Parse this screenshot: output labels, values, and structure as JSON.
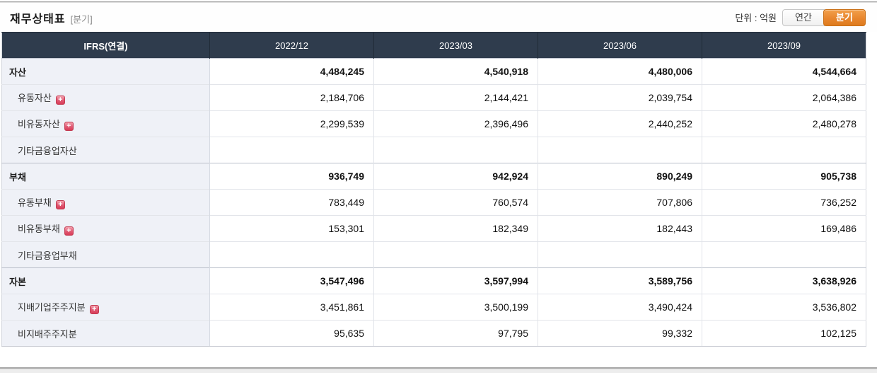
{
  "header": {
    "title": "재무상태표",
    "subtitle": "[분기]",
    "unit_label": "단위 : 억원",
    "annual_label": "연간",
    "quarter_label": "분기",
    "active_toggle": "분기"
  },
  "colors": {
    "table_header_bg": "#2f3c4d",
    "accent_orange": "#e8862e",
    "label_cell_bg": "#eff1f7",
    "expand_icon_red": "#d83c57"
  },
  "table": {
    "columns": [
      "IFRS(연결)",
      "2022/12",
      "2023/03",
      "2023/06",
      "2023/09"
    ],
    "rows": [
      {
        "label": "자산",
        "type": "section",
        "expandable": false,
        "values": [
          "4,484,245",
          "4,540,918",
          "4,480,006",
          "4,544,664"
        ]
      },
      {
        "label": "유동자산",
        "type": "sub",
        "expandable": true,
        "values": [
          "2,184,706",
          "2,144,421",
          "2,039,754",
          "2,064,386"
        ]
      },
      {
        "label": "비유동자산",
        "type": "sub",
        "expandable": true,
        "values": [
          "2,299,539",
          "2,396,496",
          "2,440,252",
          "2,480,278"
        ]
      },
      {
        "label": "기타금융업자산",
        "type": "sub",
        "expandable": false,
        "values": [
          "",
          "",
          "",
          ""
        ]
      },
      {
        "label": "부채",
        "type": "section",
        "expandable": false,
        "values": [
          "936,749",
          "942,924",
          "890,249",
          "905,738"
        ]
      },
      {
        "label": "유동부채",
        "type": "sub",
        "expandable": true,
        "values": [
          "783,449",
          "760,574",
          "707,806",
          "736,252"
        ]
      },
      {
        "label": "비유동부채",
        "type": "sub",
        "expandable": true,
        "values": [
          "153,301",
          "182,349",
          "182,443",
          "169,486"
        ]
      },
      {
        "label": "기타금융업부채",
        "type": "sub",
        "expandable": false,
        "values": [
          "",
          "",
          "",
          ""
        ]
      },
      {
        "label": "자본",
        "type": "section",
        "expandable": false,
        "values": [
          "3,547,496",
          "3,597,994",
          "3,589,756",
          "3,638,926"
        ]
      },
      {
        "label": "지배기업주주지분",
        "type": "sub",
        "expandable": true,
        "values": [
          "3,451,861",
          "3,500,199",
          "3,490,424",
          "3,536,802"
        ]
      },
      {
        "label": "비지배주주지분",
        "type": "sub",
        "expandable": false,
        "values": [
          "95,635",
          "97,795",
          "99,332",
          "102,125"
        ]
      }
    ]
  }
}
